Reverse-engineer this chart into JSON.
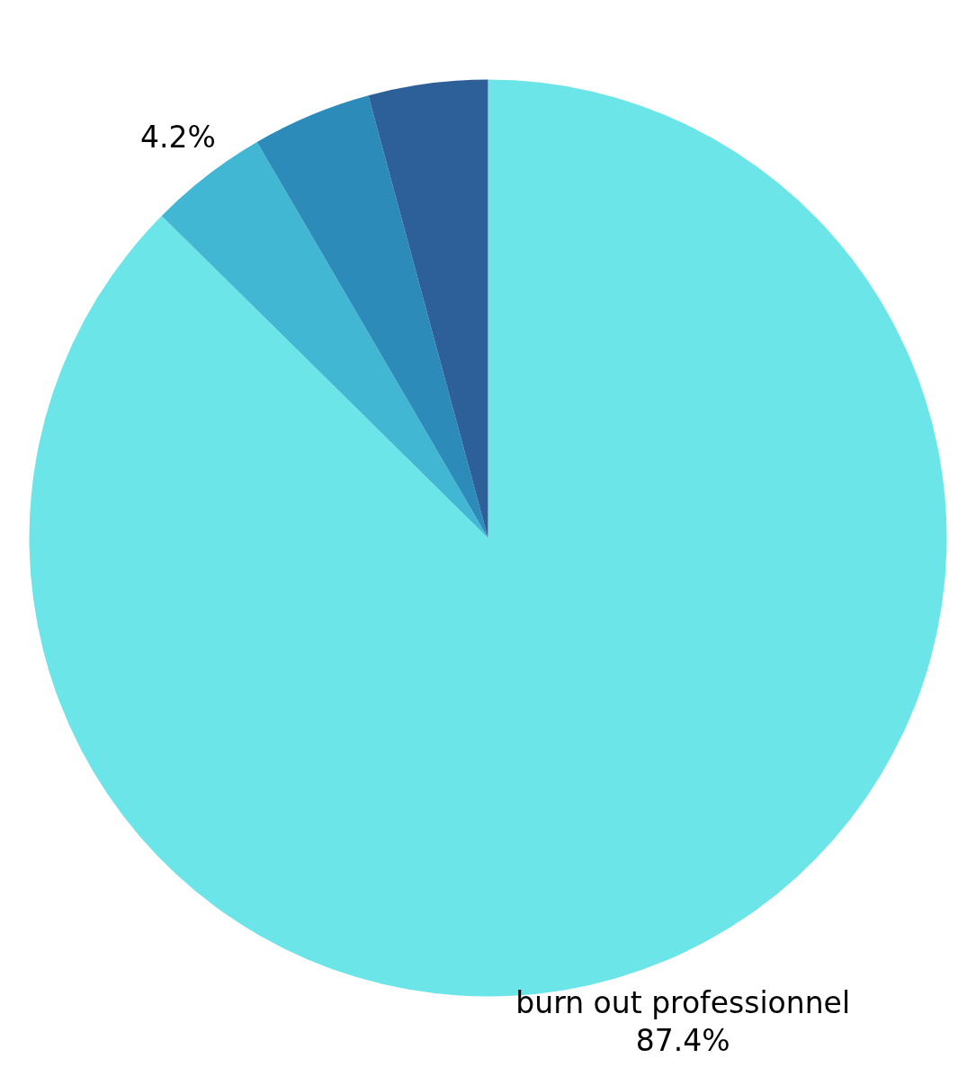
{
  "chart_data": {
    "type": "pie",
    "categories": [
      "burn out professionnel",
      null,
      null,
      null
    ],
    "values": [
      87.4,
      4.2,
      4.2,
      4.2
    ],
    "colors": [
      "#6ce5e8",
      "#42b7d4",
      "#2d8bb9",
      "#2d5f98"
    ],
    "value_labels": [
      "87.4%",
      "4.2%",
      null,
      null
    ]
  }
}
